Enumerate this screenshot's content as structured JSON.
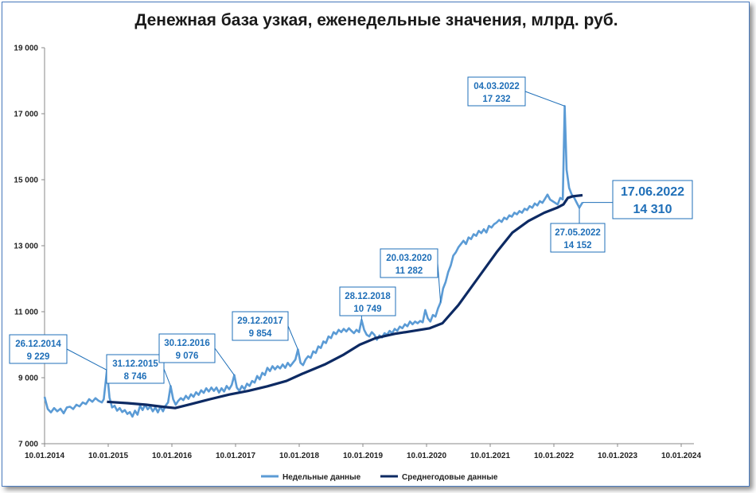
{
  "chart_data": {
    "type": "line",
    "title": "Денежная база узкая, еженедельные значения, млрд. руб.",
    "ylim": [
      7000,
      19000
    ],
    "yticks": [
      7000,
      9000,
      11000,
      13000,
      15000,
      17000,
      19000
    ],
    "ytick_labels": [
      "7 000",
      "9 000",
      "11 000",
      "13 000",
      "15 000",
      "17 000",
      "19 000"
    ],
    "x_range": [
      2014.0,
      2024.2
    ],
    "xticks": [
      2014,
      2015,
      2016,
      2017,
      2018,
      2019,
      2020,
      2021,
      2022,
      2023,
      2024
    ],
    "xtick_labels": [
      "10.01.2014",
      "10.01.2015",
      "10.01.2016",
      "10.01.2017",
      "10.01.2018",
      "10.01.2019",
      "10.01.2020",
      "10.01.2021",
      "10.01.2022",
      "10.01.2023",
      "10.01.2024"
    ],
    "legend": "bottom-center",
    "series": [
      {
        "name": "Недельные данные",
        "color": "#5b9bd5",
        "points": [
          [
            2014.0,
            8420
          ],
          [
            2014.05,
            8050
          ],
          [
            2014.1,
            7950
          ],
          [
            2014.15,
            8080
          ],
          [
            2014.2,
            7980
          ],
          [
            2014.25,
            8060
          ],
          [
            2014.3,
            7920
          ],
          [
            2014.35,
            8100
          ],
          [
            2014.4,
            8120
          ],
          [
            2014.45,
            8050
          ],
          [
            2014.5,
            8180
          ],
          [
            2014.55,
            8130
          ],
          [
            2014.6,
            8250
          ],
          [
            2014.65,
            8200
          ],
          [
            2014.7,
            8350
          ],
          [
            2014.75,
            8270
          ],
          [
            2014.8,
            8380
          ],
          [
            2014.85,
            8300
          ],
          [
            2014.9,
            8250
          ],
          [
            2014.93,
            8350
          ],
          [
            2014.98,
            9229
          ],
          [
            2015.02,
            8400
          ],
          [
            2015.06,
            8100
          ],
          [
            2015.1,
            8150
          ],
          [
            2015.14,
            8000
          ],
          [
            2015.18,
            8080
          ],
          [
            2015.22,
            7960
          ],
          [
            2015.26,
            8020
          ],
          [
            2015.3,
            7900
          ],
          [
            2015.34,
            7960
          ],
          [
            2015.38,
            7820
          ],
          [
            2015.42,
            8000
          ],
          [
            2015.46,
            7880
          ],
          [
            2015.5,
            8150
          ],
          [
            2015.54,
            8020
          ],
          [
            2015.58,
            8180
          ],
          [
            2015.62,
            8040
          ],
          [
            2015.66,
            8130
          ],
          [
            2015.7,
            7980
          ],
          [
            2015.74,
            8100
          ],
          [
            2015.78,
            7950
          ],
          [
            2015.82,
            8120
          ],
          [
            2015.86,
            7980
          ],
          [
            2015.9,
            8150
          ],
          [
            2015.94,
            8250
          ],
          [
            2015.98,
            8746
          ],
          [
            2016.02,
            8350
          ],
          [
            2016.06,
            8180
          ],
          [
            2016.1,
            8300
          ],
          [
            2016.14,
            8380
          ],
          [
            2016.18,
            8320
          ],
          [
            2016.22,
            8450
          ],
          [
            2016.26,
            8360
          ],
          [
            2016.3,
            8500
          ],
          [
            2016.34,
            8420
          ],
          [
            2016.38,
            8560
          ],
          [
            2016.42,
            8480
          ],
          [
            2016.46,
            8620
          ],
          [
            2016.5,
            8540
          ],
          [
            2016.54,
            8680
          ],
          [
            2016.58,
            8580
          ],
          [
            2016.62,
            8700
          ],
          [
            2016.66,
            8600
          ],
          [
            2016.7,
            8700
          ],
          [
            2016.74,
            8550
          ],
          [
            2016.78,
            8680
          ],
          [
            2016.82,
            8580
          ],
          [
            2016.86,
            8750
          ],
          [
            2016.9,
            8650
          ],
          [
            2016.94,
            8780
          ],
          [
            2016.98,
            9076
          ],
          [
            2017.02,
            8700
          ],
          [
            2017.06,
            8600
          ],
          [
            2017.1,
            8750
          ],
          [
            2017.14,
            8650
          ],
          [
            2017.18,
            8820
          ],
          [
            2017.22,
            8750
          ],
          [
            2017.26,
            8900
          ],
          [
            2017.3,
            8850
          ],
          [
            2017.34,
            9050
          ],
          [
            2017.38,
            8950
          ],
          [
            2017.42,
            9150
          ],
          [
            2017.46,
            9080
          ],
          [
            2017.5,
            9300
          ],
          [
            2017.54,
            9200
          ],
          [
            2017.58,
            9350
          ],
          [
            2017.62,
            9250
          ],
          [
            2017.66,
            9350
          ],
          [
            2017.7,
            9280
          ],
          [
            2017.74,
            9400
          ],
          [
            2017.78,
            9300
          ],
          [
            2017.82,
            9450
          ],
          [
            2017.86,
            9350
          ],
          [
            2017.9,
            9450
          ],
          [
            2017.94,
            9550
          ],
          [
            2017.98,
            9854
          ],
          [
            2018.02,
            9450
          ],
          [
            2018.06,
            9380
          ],
          [
            2018.1,
            9550
          ],
          [
            2018.14,
            9650
          ],
          [
            2018.18,
            9600
          ],
          [
            2018.22,
            9800
          ],
          [
            2018.26,
            9750
          ],
          [
            2018.3,
            9950
          ],
          [
            2018.34,
            9900
          ],
          [
            2018.38,
            10100
          ],
          [
            2018.42,
            10050
          ],
          [
            2018.46,
            10250
          ],
          [
            2018.5,
            10200
          ],
          [
            2018.54,
            10380
          ],
          [
            2018.58,
            10320
          ],
          [
            2018.62,
            10450
          ],
          [
            2018.66,
            10380
          ],
          [
            2018.7,
            10480
          ],
          [
            2018.74,
            10400
          ],
          [
            2018.78,
            10500
          ],
          [
            2018.82,
            10420
          ],
          [
            2018.86,
            10350
          ],
          [
            2018.9,
            10450
          ],
          [
            2018.94,
            10380
          ],
          [
            2018.98,
            10749
          ],
          [
            2019.02,
            10450
          ],
          [
            2019.06,
            10300
          ],
          [
            2019.1,
            10250
          ],
          [
            2019.14,
            10380
          ],
          [
            2019.18,
            10300
          ],
          [
            2019.22,
            10150
          ],
          [
            2019.26,
            10280
          ],
          [
            2019.3,
            10220
          ],
          [
            2019.34,
            10350
          ],
          [
            2019.38,
            10300
          ],
          [
            2019.42,
            10420
          ],
          [
            2019.46,
            10350
          ],
          [
            2019.5,
            10480
          ],
          [
            2019.54,
            10420
          ],
          [
            2019.58,
            10550
          ],
          [
            2019.62,
            10500
          ],
          [
            2019.66,
            10620
          ],
          [
            2019.7,
            10560
          ],
          [
            2019.74,
            10700
          ],
          [
            2019.78,
            10620
          ],
          [
            2019.82,
            10700
          ],
          [
            2019.86,
            10650
          ],
          [
            2019.9,
            10720
          ],
          [
            2019.94,
            10680
          ],
          [
            2019.98,
            11050
          ],
          [
            2020.02,
            10800
          ],
          [
            2020.06,
            10700
          ],
          [
            2020.1,
            10900
          ],
          [
            2020.14,
            10850
          ],
          [
            2020.18,
            11100
          ],
          [
            2020.22,
            11282
          ],
          [
            2020.26,
            11700
          ],
          [
            2020.3,
            11900
          ],
          [
            2020.34,
            12200
          ],
          [
            2020.38,
            12400
          ],
          [
            2020.42,
            12700
          ],
          [
            2020.46,
            12800
          ],
          [
            2020.5,
            12950
          ],
          [
            2020.54,
            13050
          ],
          [
            2020.58,
            13150
          ],
          [
            2020.62,
            13050
          ],
          [
            2020.66,
            13250
          ],
          [
            2020.7,
            13200
          ],
          [
            2020.74,
            13350
          ],
          [
            2020.78,
            13300
          ],
          [
            2020.82,
            13450
          ],
          [
            2020.86,
            13380
          ],
          [
            2020.9,
            13500
          ],
          [
            2020.94,
            13400
          ],
          [
            2020.98,
            13600
          ],
          [
            2021.02,
            13550
          ],
          [
            2021.06,
            13650
          ],
          [
            2021.1,
            13700
          ],
          [
            2021.14,
            13780
          ],
          [
            2021.18,
            13720
          ],
          [
            2021.22,
            13850
          ],
          [
            2021.26,
            13800
          ],
          [
            2021.3,
            13920
          ],
          [
            2021.34,
            13880
          ],
          [
            2021.38,
            14000
          ],
          [
            2021.42,
            13950
          ],
          [
            2021.46,
            14050
          ],
          [
            2021.5,
            14000
          ],
          [
            2021.54,
            14120
          ],
          [
            2021.58,
            14080
          ],
          [
            2021.62,
            14200
          ],
          [
            2021.66,
            14150
          ],
          [
            2021.7,
            14280
          ],
          [
            2021.74,
            14220
          ],
          [
            2021.78,
            14350
          ],
          [
            2021.82,
            14300
          ],
          [
            2021.86,
            14420
          ],
          [
            2021.9,
            14550
          ],
          [
            2021.94,
            14400
          ],
          [
            2021.98,
            14350
          ],
          [
            2022.02,
            14300
          ],
          [
            2022.06,
            14250
          ],
          [
            2022.1,
            14450
          ],
          [
            2022.14,
            14400
          ],
          [
            2022.17,
            17232
          ],
          [
            2022.2,
            15300
          ],
          [
            2022.24,
            14750
          ],
          [
            2022.28,
            14550
          ],
          [
            2022.32,
            14450
          ],
          [
            2022.36,
            14300
          ],
          [
            2022.4,
            14152
          ],
          [
            2022.45,
            14310
          ]
        ]
      },
      {
        "name": "Среднегодовые данные",
        "color": "#0d2a63",
        "points": [
          [
            2014.98,
            8270
          ],
          [
            2015.3,
            8230
          ],
          [
            2015.6,
            8180
          ],
          [
            2015.85,
            8120
          ],
          [
            2016.05,
            8080
          ],
          [
            2016.3,
            8200
          ],
          [
            2016.6,
            8350
          ],
          [
            2016.9,
            8490
          ],
          [
            2017.2,
            8600
          ],
          [
            2017.5,
            8740
          ],
          [
            2017.8,
            8900
          ],
          [
            2018.05,
            9120
          ],
          [
            2018.4,
            9400
          ],
          [
            2018.7,
            9700
          ],
          [
            2018.95,
            10000
          ],
          [
            2019.2,
            10200
          ],
          [
            2019.5,
            10330
          ],
          [
            2019.8,
            10420
          ],
          [
            2020.05,
            10500
          ],
          [
            2020.25,
            10650
          ],
          [
            2020.5,
            11200
          ],
          [
            2020.8,
            12000
          ],
          [
            2021.1,
            12800
          ],
          [
            2021.35,
            13400
          ],
          [
            2021.6,
            13750
          ],
          [
            2021.85,
            14000
          ],
          [
            2022.05,
            14150
          ],
          [
            2022.15,
            14250
          ],
          [
            2022.22,
            14450
          ],
          [
            2022.3,
            14500
          ],
          [
            2022.45,
            14530
          ]
        ]
      }
    ],
    "annotations": [
      {
        "date": "26.12.2014",
        "value": "9 229",
        "x": 2014.98,
        "y": 9229
      },
      {
        "date": "31.12.2015",
        "value": "8 746",
        "x": 2015.98,
        "y": 8746
      },
      {
        "date": "30.12.2016",
        "value": "9 076",
        "x": 2016.98,
        "y": 9076
      },
      {
        "date": "29.12.2017",
        "value": "9 854",
        "x": 2017.98,
        "y": 9854
      },
      {
        "date": "28.12.2018",
        "value": "10 749",
        "x": 2018.98,
        "y": 10749
      },
      {
        "date": "20.03.2020",
        "value": "11 282",
        "x": 2020.22,
        "y": 11282
      },
      {
        "date": "04.03.2022",
        "value": "17 232",
        "x": 2022.17,
        "y": 17232
      },
      {
        "date": "27.05.2022",
        "value": "14 152",
        "x": 2022.4,
        "y": 14152
      },
      {
        "date": "17.06.2022",
        "value": "14 310",
        "x": 2022.45,
        "y": 14310
      }
    ]
  }
}
